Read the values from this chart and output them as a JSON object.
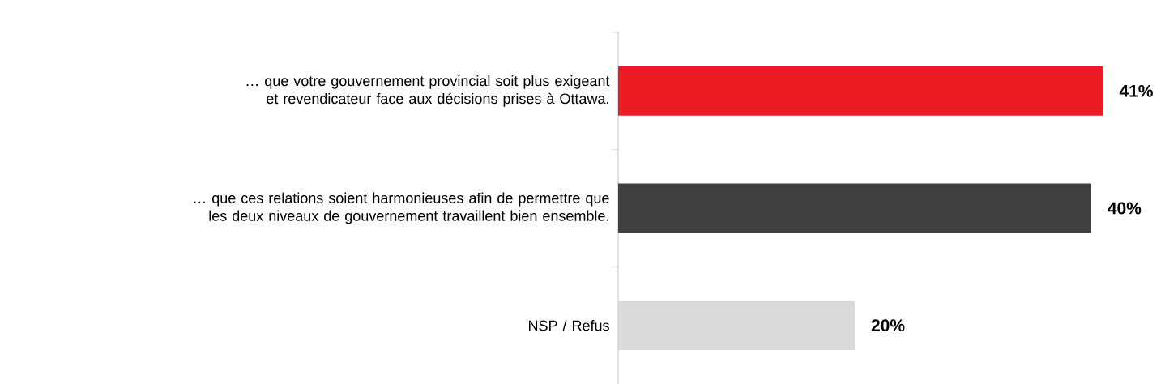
{
  "chart_data": {
    "type": "bar",
    "orientation": "horizontal",
    "categories": [
      "… que votre gouvernement provincial soit plus exigeant et revendicateur face aux décisions prises à Ottawa.",
      "… que ces relations soient harmonieuses afin de permettre que les deux niveaux de gouvernement travaillent bien ensemble.",
      "NSP / Refus"
    ],
    "values": [
      41,
      40,
      20
    ],
    "colors": [
      "#ed1c24",
      "#404040",
      "#d9d9d9"
    ],
    "data_labels": true,
    "value_labels": [
      "41%",
      "40%",
      "20%"
    ]
  }
}
